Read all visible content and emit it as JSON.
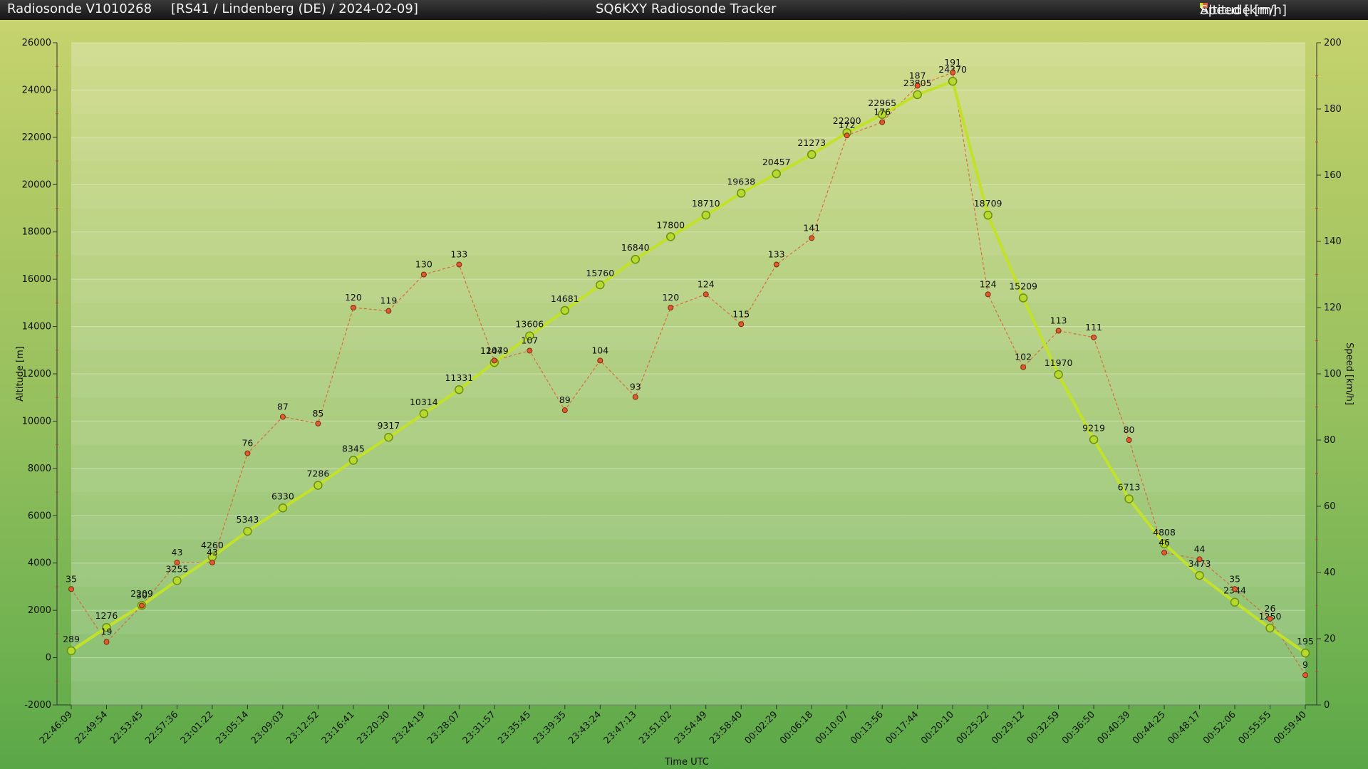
{
  "window": {
    "left_title": "Radiosonde V1010268",
    "info": "[RS41 / Lindenberg (DE) / 2024-02-09]",
    "center_title": "SQ6KXY Radiosonde Tracker"
  },
  "legend": {
    "altitude_label": "Altitude [m]",
    "speed_label": "Speed [km/h]"
  },
  "colors": {
    "altitude": "#c2e22a",
    "speed": "#e15a2e",
    "titlebar": "#222222"
  },
  "chart_data": {
    "type": "line",
    "title": "SQ6KXY Radiosonde Tracker",
    "xlabel": "Time UTC",
    "ylabel": "Altitude [m]",
    "y2label": "Speed [km/h]",
    "ylim": [
      -2000,
      26000
    ],
    "y2lim": [
      0,
      200
    ],
    "yticks": [
      -2000,
      0,
      2000,
      4000,
      6000,
      8000,
      10000,
      12000,
      14000,
      16000,
      18000,
      20000,
      22000,
      24000,
      26000
    ],
    "y2ticks": [
      0,
      20,
      40,
      60,
      80,
      100,
      120,
      140,
      160,
      180,
      200
    ],
    "grid": true,
    "legend_position": "top-right",
    "categories": [
      "22:46:09",
      "22:49:54",
      "22:53:45",
      "22:57:36",
      "23:01:22",
      "23:05:14",
      "23:09:03",
      "23:12:52",
      "23:16:41",
      "23:20:30",
      "23:24:19",
      "23:28:07",
      "23:31:57",
      "23:35:45",
      "23:39:35",
      "23:43:24",
      "23:47:13",
      "23:51:02",
      "23:54:49",
      "23:58:40",
      "00:02:29",
      "00:06:18",
      "00:10:07",
      "00:13:56",
      "00:17:44",
      "00:20:10",
      "00:25:22",
      "00:29:12",
      "00:32:59",
      "00:36:50",
      "00:40:39",
      "00:44:25",
      "00:48:17",
      "00:52:06",
      "00:55:55",
      "00:59:40"
    ],
    "series": [
      {
        "name": "Altitude [m]",
        "axis": "left",
        "values": [
          289,
          1276,
          2209,
          3255,
          4260,
          5343,
          6330,
          7286,
          8345,
          9317,
          10314,
          11331,
          12479,
          13606,
          14681,
          15760,
          16840,
          17800,
          18710,
          19638,
          20457,
          21273,
          22200,
          22965,
          23805,
          24370,
          18709,
          15209,
          11970,
          9219,
          6713,
          4808,
          3473,
          2344,
          1250,
          195
        ]
      },
      {
        "name": "Speed [km/h]",
        "axis": "right",
        "values": [
          35,
          19,
          30,
          43,
          43,
          76,
          87,
          85,
          120,
          119,
          130,
          133,
          104,
          107,
          89,
          104,
          93,
          120,
          124,
          115,
          133,
          141,
          172,
          176,
          187,
          191,
          124,
          102,
          113,
          111,
          80,
          46,
          44,
          35,
          26,
          9
        ]
      }
    ]
  }
}
